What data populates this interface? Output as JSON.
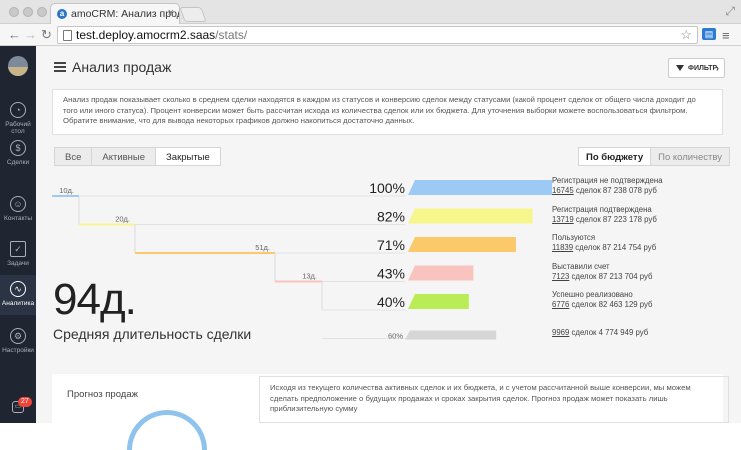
{
  "browser": {
    "tab_title": "amoCRM: Анализ продаж",
    "url_host": "test.deploy.amocrm2.saas",
    "url_path": "/stats/"
  },
  "sidebar": {
    "items": [
      {
        "label": "Рабочий стол",
        "icon": "dashboard-icon"
      },
      {
        "label": "Сделки",
        "icon": "dollar-icon"
      },
      {
        "label": "Контакты",
        "icon": "contacts-icon"
      },
      {
        "label": "Задачи",
        "icon": "tasks-icon"
      },
      {
        "label": "Аналитика",
        "icon": "analytics-icon"
      },
      {
        "label": "Настройки",
        "icon": "gear-icon"
      }
    ],
    "notifications": "27"
  },
  "header": {
    "title": "Анализ продаж",
    "filter_label": "ФИЛЬТР"
  },
  "info_text": "Анализ продаж показывает сколько в среднем сделки находятся в каждом из статусов и конверсию сделок между статусами (какой процент сделок от общего числа доходит до того или иного статуса). Процент конверсии может быть рассчитан исхода из количества сделок или их бюджета. Для уточнения выборки можете воспользоваться фильтром. Обратите внимание, что для вывода некоторых графиков должно накопиться достаточно данных.",
  "tabs": [
    "Все",
    "Активные",
    "Закрытые"
  ],
  "toggle": [
    "По бюджету",
    "По количеству"
  ],
  "funnel": [
    {
      "days": "10д.",
      "percent": "100%",
      "color": "#9ccaf5",
      "status": "Регистрация не подтверждена",
      "count": "16745",
      "summary": "сделок 87 238 078 руб",
      "pct": 100
    },
    {
      "days": "20д.",
      "percent": "82%",
      "color": "#f6f68d",
      "status": "Регистрация подтверждена",
      "count": "13719",
      "summary": "сделок 87 223 178 руб",
      "pct": 82
    },
    {
      "days": "51д.",
      "percent": "71%",
      "color": "#fbc86a",
      "status": "Пользуются",
      "count": "11839",
      "summary": "сделок 87 214 754 руб",
      "pct": 71
    },
    {
      "days": "13д.",
      "percent": "43%",
      "color": "#f9c4c0",
      "status": "Выставили счет",
      "count": "7123",
      "summary": "сделок 87 213 704 руб",
      "pct": 43
    },
    {
      "days": "",
      "percent": "40%",
      "color": "#b9ec55",
      "status": "Успешно реализовано",
      "count": "6776",
      "summary": "сделок 82 463 129 руб",
      "pct": 40
    }
  ],
  "lost": {
    "percent": "60%",
    "count": "9969",
    "summary": "сделок 4 774 949 руб",
    "color": "#d6d6d6"
  },
  "avg": {
    "value": "94д.",
    "label": "Средняя длительность сделки"
  },
  "forecast": {
    "title": "Прогноз продаж",
    "text": "Исходя из текущего количества активных сделок и их бюджета, и с учетом рассчитанной выше конверсии, мы можем сделать предположение о будущих продажах и сроках закрытия сделок. Прогноз продаж может показать лишь приблизительную сумму"
  }
}
